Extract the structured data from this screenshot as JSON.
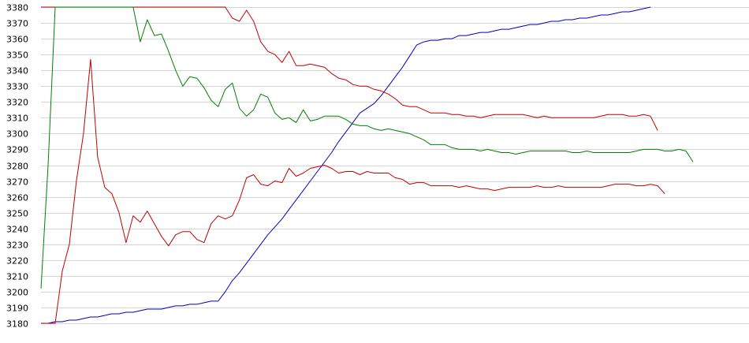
{
  "chart_data": {
    "type": "line",
    "title": "",
    "xlabel": "",
    "ylabel": "",
    "ylim": [
      3180,
      3380
    ],
    "yticks": [
      3180,
      3190,
      3200,
      3210,
      3220,
      3230,
      3240,
      3250,
      3260,
      3270,
      3280,
      3290,
      3300,
      3310,
      3320,
      3330,
      3340,
      3350,
      3360,
      3370,
      3380
    ],
    "grid": true,
    "legend": "none",
    "x_count": 100,
    "series": [
      {
        "color": "#0000c0",
        "values": [
          3180,
          3180,
          3181,
          3181,
          3182,
          3182,
          3183,
          3184,
          3184,
          3185,
          3186,
          3186,
          3187,
          3187,
          3188,
          3189,
          3189,
          3189,
          3190,
          3191,
          3191,
          3192,
          3192,
          3193,
          3194,
          3194,
          3200,
          3207,
          3212,
          3218,
          3224,
          3230,
          3236,
          3241,
          3246,
          3252,
          3258,
          3264,
          3270,
          3276,
          3282,
          3288,
          3295,
          3301,
          3307,
          3313,
          3316,
          3319,
          3324,
          3330,
          3336,
          3342,
          3349,
          3356,
          3358,
          3359,
          3359,
          3360,
          3360,
          3362,
          3362,
          3363,
          3364,
          3364,
          3365,
          3366,
          3366,
          3367,
          3368,
          3369,
          3369,
          3370,
          3371,
          3371,
          3372,
          3372,
          3373,
          3373,
          3374,
          3375,
          3375,
          3376,
          3377,
          3377,
          3378,
          3379,
          3380
        ]
      },
      {
        "color": "#c00000",
        "values": [
          3180,
          3180,
          3180,
          3213,
          3230,
          3270,
          3300,
          3347,
          3285,
          3266,
          3262,
          3250,
          3231,
          3248,
          3244,
          3251,
          3243,
          3235,
          3229,
          3236,
          3238,
          3238,
          3233,
          3231,
          3243,
          3248,
          3246,
          3248,
          3258,
          3272,
          3274,
          3268,
          3267,
          3270,
          3269,
          3278,
          3273,
          3275,
          3278,
          3279,
          3280,
          3278,
          3275,
          3276,
          3276,
          3274,
          3276,
          3275,
          3275,
          3275,
          3272,
          3271,
          3268,
          3269,
          3269,
          3267,
          3267,
          3267,
          3267,
          3266,
          3267,
          3266,
          3265,
          3265,
          3264,
          3265,
          3266,
          3266,
          3266,
          3266,
          3267,
          3266,
          3266,
          3267,
          3266,
          3266,
          3266,
          3266,
          3266,
          3266,
          3267,
          3268,
          3268,
          3268,
          3267,
          3267,
          3268,
          3267,
          3262
        ]
      },
      {
        "color": "#c00000",
        "values": [
          3380,
          3380,
          3380,
          3380,
          3380,
          3380,
          3380,
          3380,
          3380,
          3380,
          3380,
          3380,
          3380,
          3380,
          3380,
          3380,
          3380,
          3380,
          3380,
          3380,
          3380,
          3380,
          3380,
          3380,
          3380,
          3380,
          3380,
          3373,
          3371,
          3378,
          3371,
          3358,
          3352,
          3350,
          3345,
          3352,
          3343,
          3343,
          3344,
          3343,
          3342,
          3338,
          3335,
          3334,
          3331,
          3330,
          3330,
          3328,
          3327,
          3325,
          3322,
          3318,
          3317,
          3317,
          3315,
          3313,
          3313,
          3313,
          3312,
          3312,
          3311,
          3311,
          3310,
          3311,
          3312,
          3312,
          3312,
          3312,
          3312,
          3311,
          3310,
          3311,
          3310,
          3310,
          3310,
          3310,
          3310,
          3310,
          3310,
          3311,
          3312,
          3312,
          3312,
          3311,
          3311,
          3312,
          3311,
          3302
        ]
      },
      {
        "color": "#008000",
        "values": [
          3202,
          3280,
          3380,
          3380,
          3380,
          3380,
          3380,
          3380,
          3380,
          3380,
          3380,
          3380,
          3380,
          3380,
          3358,
          3372,
          3362,
          3363,
          3352,
          3340,
          3330,
          3336,
          3335,
          3329,
          3321,
          3317,
          3328,
          3332,
          3316,
          3311,
          3315,
          3325,
          3323,
          3313,
          3309,
          3310,
          3307,
          3315,
          3308,
          3309,
          3311,
          3311,
          3311,
          3309,
          3306,
          3305,
          3305,
          3303,
          3302,
          3303,
          3302,
          3301,
          3300,
          3298,
          3296,
          3293,
          3293,
          3293,
          3291,
          3290,
          3290,
          3290,
          3289,
          3290,
          3289,
          3288,
          3288,
          3287,
          3288,
          3289,
          3289,
          3289,
          3289,
          3289,
          3289,
          3288,
          3288,
          3289,
          3288,
          3288,
          3288,
          3288,
          3288,
          3288,
          3289,
          3290,
          3290,
          3290,
          3289,
          3289,
          3290,
          3289,
          3282
        ]
      }
    ]
  }
}
